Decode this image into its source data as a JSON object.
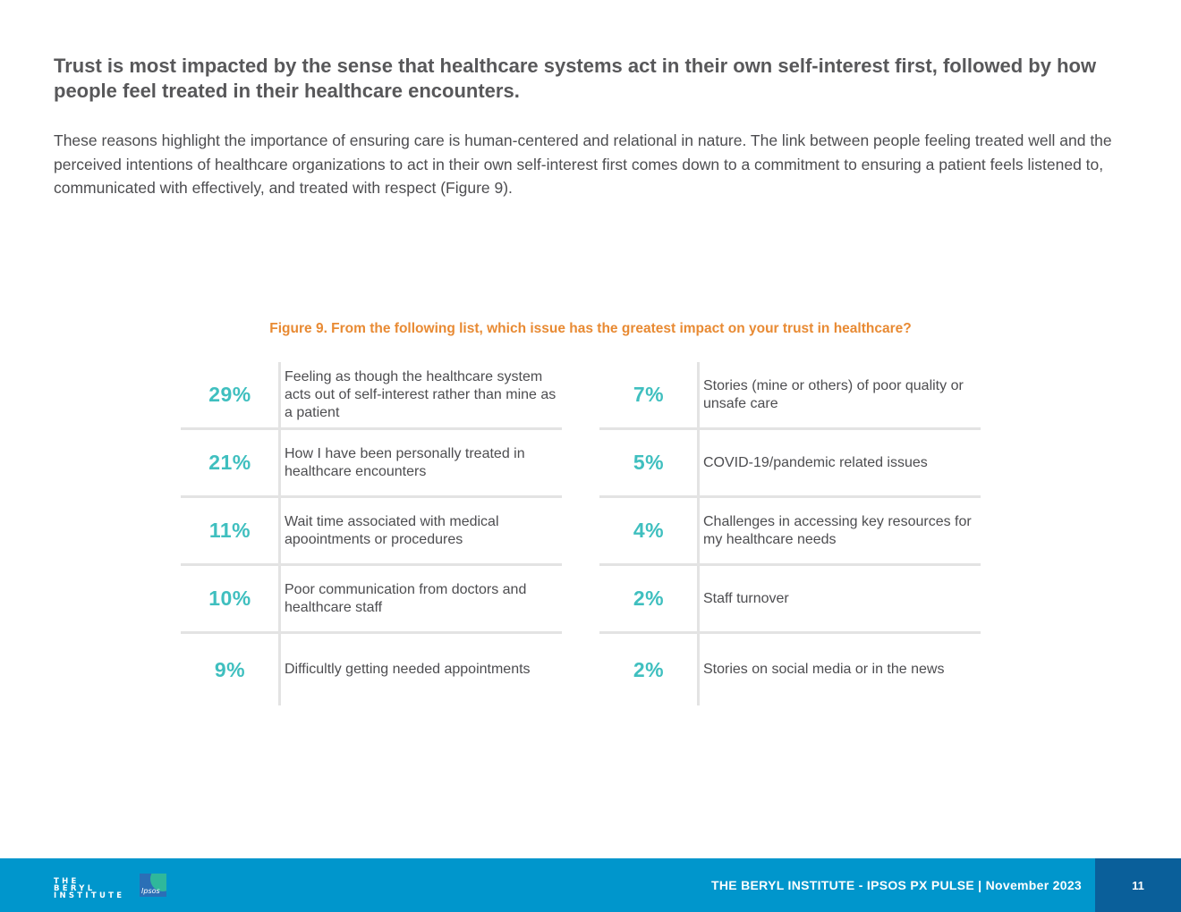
{
  "headline": "Trust is most impacted by the sense that healthcare systems act in their own self-interest first, followed by how people feel treated in their healthcare encounters.",
  "body": "These reasons highlight the importance of ensuring care is human-centered and relational in nature. The link between people feeling treated well and the perceived intentions of healthcare organizations to act in their own self-interest first comes down to a commitment to ensuring a patient feels listened to, communicated with effectively, and treated with respect (Figure 9).",
  "figure": {
    "caption": "Figure 9. From the following list, which issue has the greatest impact on your trust in healthcare?",
    "left": [
      {
        "pct": "29%",
        "label": "Feeling as though the healthcare system acts out of self-interest rather than mine as a patient"
      },
      {
        "pct": "21%",
        "label": "How I have been personally treated in healthcare encounters"
      },
      {
        "pct": "11%",
        "label": "Wait time associated with medical apoointments or procedures"
      },
      {
        "pct": "10%",
        "label": "Poor communication from doctors and healthcare staff"
      },
      {
        "pct": "9%",
        "label": "Difficultly getting needed appointments"
      }
    ],
    "right": [
      {
        "pct": "7%",
        "label": "Stories (mine or others) of poor quality or unsafe care"
      },
      {
        "pct": "5%",
        "label": "COVID-19/pandemic related issues"
      },
      {
        "pct": "4%",
        "label": "Challenges in accessing key resources for my healthcare needs"
      },
      {
        "pct": "2%",
        "label": "Staff turnover"
      },
      {
        "pct": "2%",
        "label": "Stories on social media or in the news"
      }
    ]
  },
  "footer": {
    "logo_line1": "THE BERYL",
    "logo_line2": "INSTITUTE",
    "ipsos_logo": "Ipsos",
    "publication": "THE BERYL INSTITUTE - IPSOS PX PULSE | November 2023",
    "page_number": "11"
  },
  "colors": {
    "accent_orange": "#e88a33",
    "accent_teal": "#3fbfbf",
    "footer_blue": "#0096cc",
    "page_box_blue": "#0a5f9a"
  }
}
